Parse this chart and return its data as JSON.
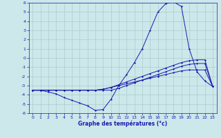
{
  "xlabel": "Graphe des températures (°c)",
  "xlim": [
    -0.5,
    23.5
  ],
  "ylim": [
    -6,
    6
  ],
  "xticks": [
    0,
    1,
    2,
    3,
    4,
    5,
    6,
    7,
    8,
    9,
    10,
    11,
    12,
    13,
    14,
    15,
    16,
    17,
    18,
    19,
    20,
    21,
    22,
    23
  ],
  "yticks": [
    -6,
    -5,
    -4,
    -3,
    -2,
    -1,
    0,
    1,
    2,
    3,
    4,
    5,
    6
  ],
  "background_color": "#cce8ea",
  "grid_color": "#aacccc",
  "line_color": "#1a1ab0",
  "curve1_x": [
    0,
    1,
    2,
    3,
    4,
    5,
    6,
    7,
    8,
    9,
    10,
    11,
    12,
    13,
    14,
    15,
    16,
    17,
    18,
    19,
    20,
    21,
    22,
    23
  ],
  "curve1_y": [
    -3.5,
    -3.5,
    -3.7,
    -3.9,
    -4.3,
    -4.6,
    -4.9,
    -5.2,
    -5.7,
    -5.6,
    -4.5,
    -3.0,
    -1.8,
    -0.5,
    1.0,
    3.0,
    5.0,
    5.9,
    6.1,
    5.6,
    1.0,
    -1.5,
    -2.5,
    -3.1
  ],
  "curve2_x": [
    0,
    1,
    2,
    3,
    4,
    5,
    6,
    7,
    8,
    9,
    10,
    11,
    12,
    13,
    14,
    15,
    16,
    17,
    18,
    19,
    20,
    21,
    22,
    23
  ],
  "curve2_y": [
    -3.5,
    -3.5,
    -3.5,
    -3.5,
    -3.5,
    -3.5,
    -3.5,
    -3.5,
    -3.5,
    -3.4,
    -3.2,
    -3.0,
    -2.8,
    -2.6,
    -2.4,
    -2.2,
    -2.0,
    -1.8,
    -1.6,
    -1.4,
    -1.3,
    -1.3,
    -1.3,
    -3.1
  ],
  "curve3_x": [
    0,
    1,
    2,
    3,
    4,
    5,
    6,
    7,
    8,
    9,
    10,
    11,
    12,
    13,
    14,
    15,
    16,
    17,
    18,
    19,
    20,
    21,
    22,
    23
  ],
  "curve3_y": [
    -3.5,
    -3.5,
    -3.5,
    -3.5,
    -3.5,
    -3.5,
    -3.5,
    -3.5,
    -3.5,
    -3.4,
    -3.2,
    -2.9,
    -2.6,
    -2.3,
    -2.0,
    -1.7,
    -1.4,
    -1.1,
    -0.8,
    -0.5,
    -0.3,
    -0.2,
    -0.2,
    -3.1
  ],
  "curve4_x": [
    0,
    1,
    2,
    3,
    4,
    5,
    6,
    7,
    8,
    9,
    10,
    11,
    12,
    13,
    14,
    15,
    16,
    17,
    18,
    19,
    20,
    21,
    22,
    23
  ],
  "curve4_y": [
    -3.5,
    -3.5,
    -3.5,
    -3.5,
    -3.5,
    -3.5,
    -3.5,
    -3.5,
    -3.5,
    -3.5,
    -3.5,
    -3.3,
    -3.0,
    -2.7,
    -2.4,
    -2.1,
    -1.8,
    -1.5,
    -1.2,
    -0.9,
    -0.7,
    -0.6,
    -0.6,
    -3.1
  ]
}
